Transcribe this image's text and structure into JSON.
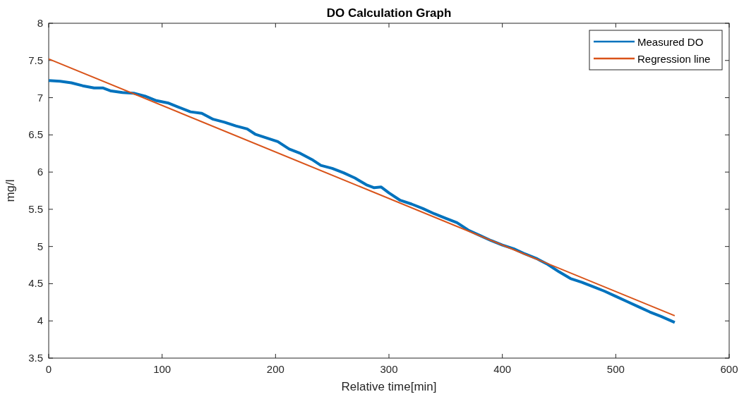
{
  "chart_data": {
    "type": "line",
    "title": "DO Calculation Graph",
    "xlabel": "Relative time[min]",
    "ylabel": "mg/l",
    "xlim": [
      0,
      600
    ],
    "xticks": [
      0,
      100,
      200,
      300,
      400,
      500,
      600
    ],
    "ylim": [
      3.5,
      8
    ],
    "yticks": [
      3.5,
      4,
      4.5,
      5,
      5.5,
      6,
      6.5,
      7,
      7.5,
      8
    ],
    "legend": "top right",
    "grid": false,
    "series": [
      {
        "name": "Measured DO",
        "color": "#0072bd",
        "x": [
          0,
          10,
          20,
          30,
          40,
          48,
          55,
          65,
          75,
          85,
          95,
          105,
          115,
          125,
          135,
          145,
          155,
          165,
          175,
          182,
          192,
          202,
          212,
          222,
          232,
          240,
          250,
          260,
          270,
          280,
          287,
          293,
          300,
          310,
          320,
          330,
          340,
          350,
          360,
          370,
          380,
          390,
          400,
          410,
          420,
          430,
          440,
          450,
          460,
          470,
          480,
          490,
          500,
          510,
          520,
          530,
          540,
          552
        ],
        "values": [
          7.23,
          7.22,
          7.2,
          7.16,
          7.13,
          7.13,
          7.09,
          7.07,
          7.06,
          7.02,
          6.96,
          6.93,
          6.87,
          6.81,
          6.79,
          6.71,
          6.67,
          6.62,
          6.58,
          6.51,
          6.46,
          6.41,
          6.31,
          6.25,
          6.17,
          6.09,
          6.05,
          5.99,
          5.92,
          5.83,
          5.79,
          5.8,
          5.72,
          5.62,
          5.57,
          5.51,
          5.44,
          5.38,
          5.32,
          5.22,
          5.15,
          5.08,
          5.02,
          4.97,
          4.9,
          4.84,
          4.76,
          4.66,
          4.57,
          4.52,
          4.46,
          4.4,
          4.33,
          4.26,
          4.19,
          4.12,
          4.06,
          3.98
        ]
      },
      {
        "name": "Regression line",
        "color": "#d95319",
        "x": [
          0,
          552
        ],
        "values": [
          7.52,
          4.07
        ]
      }
    ]
  }
}
